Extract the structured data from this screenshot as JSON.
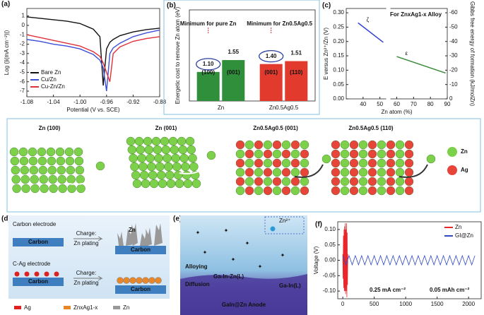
{
  "chart_data": [
    {
      "type": "line",
      "label": "(a)",
      "xlabel": "Potential (V vs. SCE)",
      "ylabel": "Log (|i(mA cm⁻²)|)",
      "legend": "lower left",
      "x": [
        -1.08,
        -1.06,
        -1.04,
        -1.02,
        -1.0,
        -0.98,
        -0.97,
        -0.965,
        -0.96,
        -0.955,
        -0.95,
        -0.94,
        -0.92,
        -0.9,
        -0.88
      ],
      "series": [
        {
          "name": "Bare Zn",
          "color": "#111111",
          "values": [
            0.9,
            0.75,
            0.6,
            0.45,
            0.2,
            -0.4,
            -1.2,
            -6.4,
            -2.5,
            -1.8,
            -1.5,
            -1.1,
            -0.7,
            -0.45,
            -0.3
          ]
        },
        {
          "name": "Cu/Zn",
          "color": "#3b4fd8",
          "values": [
            -1.5,
            -1.7,
            -2.0,
            -2.2,
            -2.5,
            -3.1,
            -3.7,
            -4.5,
            -7.0,
            -3.0,
            -2.4,
            -1.9,
            -1.2,
            -0.8,
            -0.5
          ]
        },
        {
          "name": "Cu-Zn/Zn",
          "color": "#e0303a",
          "values": [
            -1.0,
            -1.3,
            -1.6,
            -1.9,
            -2.2,
            -2.8,
            -3.3,
            -4.0,
            -5.0,
            -6.0,
            -3.0,
            -2.3,
            -1.7,
            -1.4,
            -1.2
          ]
        }
      ],
      "xlim": [
        -1.08,
        -0.88
      ],
      "xticks": [
        -1.08,
        -1.04,
        {
          "value": -1,
          "label": "-1.00"
        },
        -0.96,
        -0.92,
        -0.88
      ],
      "ylim": [
        -7.6,
        1.8
      ],
      "yticks": [
        -7,
        -6,
        -5,
        -4,
        -3,
        -2,
        -1,
        0,
        1
      ]
    },
    {
      "type": "bar",
      "label": "(b)",
      "ylabel": "Energetic cost to remove Zn atom (eV)",
      "categories": [
        "Zn",
        "Zn0.5Ag0.5"
      ],
      "bar_labels": [
        [
          "(100)",
          "(001)"
        ],
        [
          "(001)",
          "(110)"
        ]
      ],
      "values": [
        [
          1.1,
          1.55
        ],
        [
          1.4,
          1.51
        ]
      ],
      "value_labels": [
        [
          "1.10",
          "1.55"
        ],
        [
          "1.40",
          "1.51"
        ]
      ],
      "colors": [
        "#2f8f3a",
        "#e23b2e"
      ],
      "annotations": [
        "Minimum for pure Zn",
        "Minimum for Zn0.5Ag0.5"
      ],
      "ylim": [
        0,
        3.45
      ]
    },
    {
      "type": "dual_line",
      "label": "(c)",
      "xlabel": "Zn atom (%)",
      "ylabel": "E versus Zn²⁺/Zn (V)",
      "y2label": "Gibbs free energy of formation (kJ/molZn)",
      "annotation": "For ZnxAg1-x Alloy",
      "xlim": [
        30,
        90
      ],
      "xticks": [
        40,
        50,
        60,
        70,
        80,
        90
      ],
      "ylim": [
        0,
        0.315
      ],
      "yticks": [
        {
          "value": 0,
          "label": "0.00"
        },
        0.05,
        {
          "value": 0.1,
          "label": "0.10"
        },
        0.15,
        {
          "value": 0.2,
          "label": "0.20"
        },
        0.25,
        {
          "value": 0.3,
          "label": "0.30"
        }
      ],
      "y2lim": [
        0,
        -63
      ],
      "y2ticks": [
        0,
        -10,
        -20,
        -30,
        -40,
        -50,
        -60
      ],
      "series": [
        {
          "name": "ζ",
          "color": "#2b3fd0",
          "x": [
            37,
            52
          ],
          "values": [
            0.265,
            0.197
          ]
        },
        {
          "name": "ε",
          "color": "#3a8a3a",
          "axis": "y2",
          "x": [
            60,
            89
          ],
          "values": [
            -29.5,
            -18
          ]
        }
      ]
    },
    {
      "type": "line",
      "label": "(f)",
      "ylabel": "Voltage (V)",
      "legend": "upper right",
      "annotations": [
        "0.25 mA cm⁻²",
        "0.05 mAh cm⁻²"
      ],
      "xlim": [
        -80,
        2200
      ],
      "xticks": [
        0,
        500,
        1000,
        1500,
        2000
      ],
      "ylim": [
        -0.125,
        0.125
      ],
      "yticks": [
        {
          "value": -0.1,
          "label": "-0.10"
        },
        -0.05,
        {
          "value": 0,
          "label": "0.00"
        },
        0.05,
        {
          "value": 0.1,
          "label": "0.10"
        }
      ],
      "series": [
        {
          "name": "Zn",
          "color": "#e8262b",
          "x": [
            0,
            5,
            10,
            15,
            20,
            25,
            30,
            35,
            40,
            45,
            50,
            55,
            60,
            65,
            70,
            75,
            80
          ],
          "values": [
            0.02,
            -0.06,
            0.08,
            -0.09,
            0.1,
            -0.1,
            0.11,
            -0.1,
            0.12,
            -0.11,
            0.1,
            -0.1,
            0.12,
            -0.12,
            0.09,
            -0.08,
            0.02
          ]
        },
        {
          "name": "GI@Zn",
          "color": "#2f49c8",
          "x": [
            0,
            50,
            100,
            150,
            200,
            250,
            300,
            350,
            400,
            450,
            500,
            550,
            600,
            650,
            700,
            750,
            800,
            850,
            900,
            950,
            1000,
            1050,
            1100,
            1150,
            1200,
            1250,
            1300,
            1350,
            1400,
            1450,
            1500,
            1550,
            1600,
            1650,
            1700,
            1750,
            1800,
            1850,
            1900,
            1950,
            2000,
            2050,
            2100
          ],
          "values": [
            0.015,
            -0.015,
            0.015,
            -0.015,
            0.015,
            -0.015,
            0.015,
            -0.015,
            0.015,
            -0.015,
            0.015,
            -0.015,
            0.015,
            -0.015,
            0.015,
            -0.015,
            0.015,
            -0.015,
            0.015,
            -0.015,
            0.015,
            -0.015,
            0.015,
            -0.015,
            0.015,
            -0.015,
            0.015,
            -0.015,
            0.015,
            -0.015,
            0.015,
            -0.015,
            0.015,
            -0.015,
            0.015,
            -0.015,
            0.015,
            -0.015,
            0.015,
            -0.015,
            0.015,
            -0.015,
            0.015
          ]
        }
      ]
    }
  ],
  "illustration": {
    "titles": [
      "Zn (100)",
      "Zn (001)",
      "Zn0.5Ag0.5 (001)",
      "Zn0.5Ag0.5 (110)"
    ],
    "legend": [
      "Zn",
      "Ag"
    ]
  },
  "panel_d": {
    "label": "(d)",
    "rows": [
      {
        "title": "Carbon electrode",
        "substrate": "Carbon",
        "arrow_top": "Charge:",
        "arrow_bottom": "Zn plating",
        "result": "Carbon",
        "deposit": "Zn"
      },
      {
        "title": "C-Ag electrode",
        "substrate": "Carbon",
        "arrow_top": "Charge:",
        "arrow_bottom": "Zn plating",
        "result": "Carbon"
      }
    ],
    "legend": [
      "Ag",
      "ZnxAg1-x",
      "Zn"
    ]
  },
  "panel_e": {
    "label": "(e)",
    "legend": "Zn²⁺",
    "texts": [
      "Alloying",
      "Diffusion",
      "Ga-In-Zn(L)",
      "Ga-In(L)"
    ],
    "anode": "GaIn@Zn Anode"
  }
}
